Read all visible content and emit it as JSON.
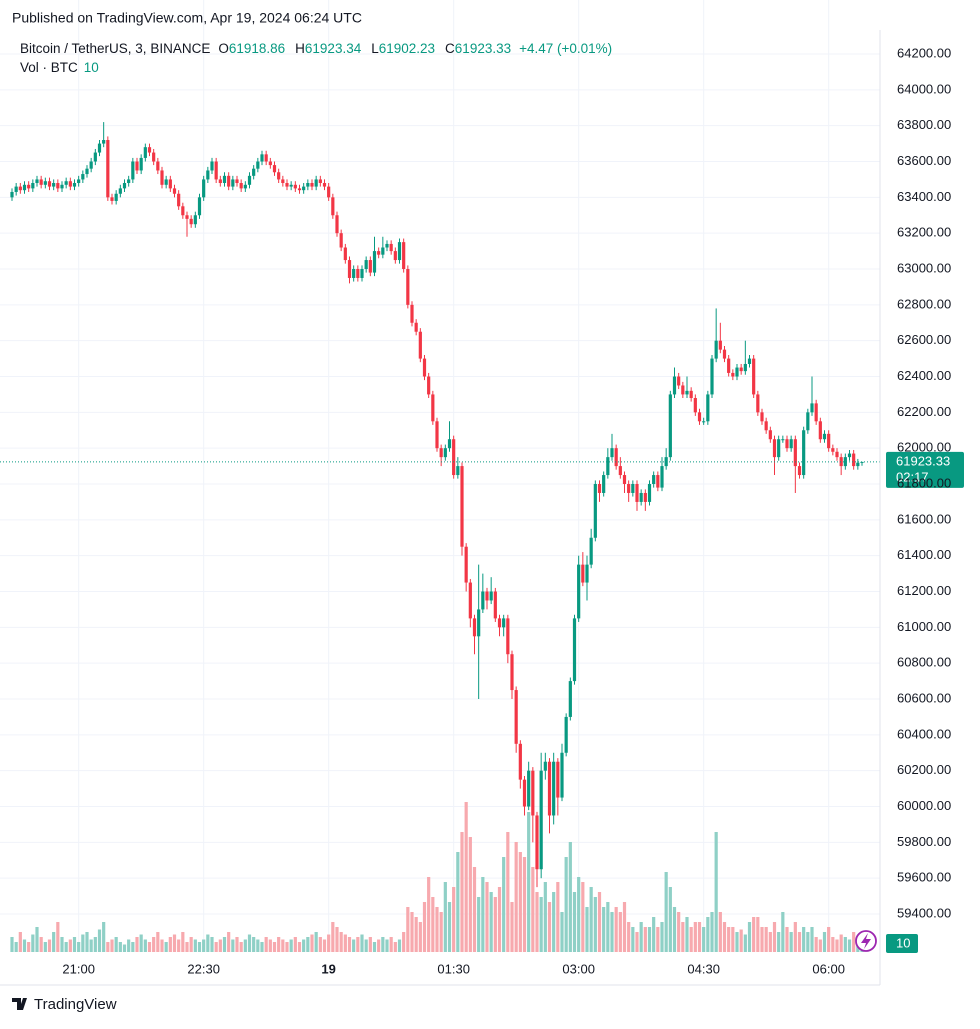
{
  "chart_data": {
    "type": "candlestick",
    "published": "Published on TradingView.com, Apr 19, 2024 06:24 UTC",
    "symbol": "Bitcoin / TetherUS, 3, BINANCE",
    "ohlc_keys": [
      "O",
      "H",
      "L",
      "C"
    ],
    "change": "+4.47 (+0.01%)",
    "volume_title": "Vol · BTC",
    "countdown": "02:17",
    "brand": "TradingView",
    "up_color": "#089981",
    "down_color": "#f23645",
    "volume_up_color": "#8fd0c6",
    "volume_down_color": "#f7a9ae",
    "grid": true,
    "ylim": [
      59188,
      64334
    ],
    "volume_ylim": [
      0,
      600
    ],
    "yticks": [
      {
        "value": 59400,
        "label": "59400.00"
      },
      {
        "value": 59600,
        "label": "59600.00"
      },
      {
        "value": 59800,
        "label": "59800.00"
      },
      {
        "value": 60000,
        "label": "60000.00"
      },
      {
        "value": 60200,
        "label": "60200.00"
      },
      {
        "value": 60400,
        "label": "60400.00"
      },
      {
        "value": 60600,
        "label": "60600.00"
      },
      {
        "value": 60800,
        "label": "60800.00"
      },
      {
        "value": 61000,
        "label": "61000.00"
      },
      {
        "value": 61200,
        "label": "61200.00"
      },
      {
        "value": 61400,
        "label": "61400.00"
      },
      {
        "value": 61600,
        "label": "61600.00"
      },
      {
        "value": 61800,
        "label": "61800.00"
      },
      {
        "value": 62000,
        "label": "62000.00"
      },
      {
        "value": 62200,
        "label": "62200.00"
      },
      {
        "value": 62400,
        "label": "62400.00"
      },
      {
        "value": 62600,
        "label": "62600.00"
      },
      {
        "value": 62800,
        "label": "62800.00"
      },
      {
        "value": 63000,
        "label": "63000.00"
      },
      {
        "value": 63200,
        "label": "63200.00"
      },
      {
        "value": 63400,
        "label": "63400.00"
      },
      {
        "value": 63600,
        "label": "63600.00"
      },
      {
        "value": 63800,
        "label": "63800.00"
      },
      {
        "value": 64000,
        "label": "64000.00"
      },
      {
        "value": 64200,
        "label": "64200.00"
      }
    ],
    "xlim": [
      0,
      208
    ],
    "xticks": [
      {
        "value": 16,
        "label": "21:00"
      },
      {
        "value": 46,
        "label": "22:30"
      },
      {
        "value": 76,
        "label": "19"
      },
      {
        "value": 106,
        "label": "01:30"
      },
      {
        "value": 136,
        "label": "03:00"
      },
      {
        "value": 166,
        "label": "04:30"
      },
      {
        "value": 196,
        "label": "06:00"
      }
    ],
    "open": [
      63400,
      63430,
      63460,
      63440,
      63470,
      63450,
      63480,
      63500,
      63470,
      63490,
      63460,
      63480,
      63450,
      63470,
      63490,
      63460,
      63480,
      63500,
      63530,
      63560,
      63600,
      63650,
      63700,
      63720,
      63400,
      63380,
      63420,
      63450,
      63480,
      63500,
      63600,
      63550,
      63620,
      63680,
      63650,
      63600,
      63550,
      63470,
      63500,
      63450,
      63420,
      63350,
      63300,
      63280,
      63250,
      63300,
      63400,
      63500,
      63550,
      63600,
      63500,
      63480,
      63520,
      63460,
      63500,
      63480,
      63450,
      63470,
      63520,
      63560,
      63600,
      63640,
      63600,
      63580,
      63540,
      63500,
      63480,
      63460,
      63470,
      63450,
      63440,
      63460,
      63480,
      63460,
      63500,
      63480,
      63460,
      63400,
      63300,
      63200,
      63120,
      63050,
      62950,
      63000,
      62950,
      63000,
      63050,
      62980,
      63100,
      63080,
      63120,
      63140,
      63100,
      63050,
      63150,
      63000,
      62800,
      62700,
      62650,
      62500,
      62400,
      62300,
      62150,
      62000,
      61950,
      62000,
      62050,
      61850,
      61900,
      61450,
      61250,
      61050,
      60950,
      61100,
      61200,
      61150,
      61200,
      61050,
      61000,
      61050,
      60850,
      60650,
      60350,
      60150,
      60000,
      60200,
      59950,
      59650,
      60200,
      60250,
      59950,
      60250,
      60050,
      60300,
      60500,
      60700,
      61050,
      61350,
      61250,
      61350,
      61500,
      61800,
      61750,
      61850,
      61950,
      62000,
      61900,
      61850,
      61800,
      61750,
      61800,
      61700,
      61750,
      61700,
      61800,
      61850,
      61780,
      61900,
      61950,
      62300,
      62400,
      62350,
      62300,
      62320,
      62280,
      62200,
      62150,
      62150,
      62300,
      62500,
      62600,
      62550,
      62500,
      62420,
      62400,
      62450,
      62430,
      62470,
      62500,
      62300,
      62200,
      62150,
      62100,
      62050,
      61950,
      62050,
      62050,
      62000,
      62050,
      61900,
      61850,
      62100,
      62200,
      62250,
      62150,
      62050,
      62080,
      62000,
      61980,
      61950,
      61900,
      61950,
      61970,
      61900,
      61918.86
    ],
    "high": [
      63450,
      63480,
      63480,
      63490,
      63490,
      63500,
      63520,
      63520,
      63510,
      63510,
      63500,
      63500,
      63490,
      63510,
      63510,
      63500,
      63520,
      63550,
      63580,
      63620,
      63670,
      63720,
      63820,
      63740,
      63420,
      63440,
      63470,
      63500,
      63520,
      63620,
      63620,
      63640,
      63700,
      63700,
      63670,
      63620,
      63570,
      63520,
      63520,
      63470,
      63440,
      63370,
      63320,
      63300,
      63320,
      63420,
      63520,
      63570,
      63620,
      63620,
      63520,
      63540,
      63540,
      63520,
      63520,
      63500,
      63490,
      63540,
      63580,
      63620,
      63660,
      63660,
      63620,
      63600,
      63560,
      63520,
      63500,
      63490,
      63490,
      63470,
      63480,
      63500,
      63500,
      63520,
      63520,
      63500,
      63480,
      63420,
      63320,
      63220,
      63140,
      63070,
      63020,
      63020,
      63020,
      63070,
      63070,
      63180,
      63120,
      63180,
      63160,
      63160,
      63120,
      63170,
      63170,
      63020,
      62820,
      62720,
      62670,
      62520,
      62420,
      62320,
      62170,
      62020,
      62020,
      62150,
      62070,
      61950,
      61920,
      61470,
      61270,
      61070,
      61350,
      61300,
      61220,
      61280,
      61220,
      61070,
      61070,
      61070,
      60870,
      60670,
      60370,
      60170,
      60250,
      60220,
      59970,
      60300,
      60300,
      60270,
      60300,
      60270,
      60350,
      60520,
      60720,
      61070,
      61400,
      61420,
      61400,
      61550,
      61820,
      61820,
      61870,
      62000,
      62080,
      62020,
      61950,
      61870,
      61820,
      61820,
      61820,
      61770,
      61770,
      61820,
      61870,
      61870,
      61950,
      62000,
      62320,
      62450,
      62420,
      62370,
      62400,
      62340,
      62300,
      62220,
      62170,
      62320,
      62520,
      62780,
      62700,
      62570,
      62520,
      62440,
      62470,
      62470,
      62600,
      62520,
      62520,
      62320,
      62220,
      62170,
      62120,
      62070,
      62070,
      62070,
      62070,
      62070,
      62070,
      61920,
      62120,
      62220,
      62400,
      62270,
      62170,
      62100,
      62100,
      62020,
      62000,
      61970,
      61970,
      61990,
      61990,
      61940,
      61923.34
    ],
    "low": [
      63380,
      63410,
      63420,
      63420,
      63430,
      63430,
      63460,
      63450,
      63450,
      63440,
      63440,
      63430,
      63430,
      63450,
      63440,
      63440,
      63460,
      63480,
      63510,
      63540,
      63580,
      63630,
      63680,
      63380,
      63360,
      63360,
      63400,
      63430,
      63460,
      63480,
      63530,
      63530,
      63600,
      63630,
      63580,
      63530,
      63450,
      63450,
      63430,
      63400,
      63330,
      63280,
      63180,
      63230,
      63230,
      63280,
      63380,
      63480,
      63530,
      63480,
      63460,
      63460,
      63440,
      63440,
      63460,
      63430,
      63430,
      63450,
      63500,
      63540,
      63580,
      63580,
      63560,
      63520,
      63480,
      63460,
      63440,
      63440,
      63430,
      63420,
      63420,
      63440,
      63440,
      63440,
      63460,
      63440,
      63380,
      63280,
      63180,
      63100,
      63030,
      62920,
      62930,
      62930,
      62930,
      62980,
      62960,
      62960,
      63060,
      63060,
      63100,
      63080,
      63030,
      63030,
      62980,
      62780,
      62680,
      62630,
      62480,
      62380,
      62280,
      62130,
      61980,
      61900,
      61930,
      61980,
      61830,
      61830,
      61400,
      61200,
      61000,
      60850,
      60600,
      61080,
      61100,
      61130,
      61030,
      60950,
      60950,
      60800,
      60600,
      60300,
      60100,
      59950,
      59980,
      59800,
      59550,
      59600,
      60150,
      59850,
      59900,
      59950,
      60030,
      60280,
      60480,
      60680,
      61030,
      61230,
      61150,
      61330,
      61480,
      61700,
      61730,
      61830,
      61930,
      61880,
      61830,
      61750,
      61700,
      61730,
      61650,
      61680,
      61650,
      61680,
      61780,
      61760,
      61760,
      61880,
      61930,
      62280,
      62330,
      62280,
      62280,
      62260,
      62180,
      62130,
      62130,
      62130,
      62280,
      62480,
      62530,
      62480,
      62400,
      62380,
      62380,
      62410,
      62410,
      62450,
      62280,
      62180,
      62130,
      62080,
      62030,
      61850,
      61930,
      62030,
      61980,
      61980,
      61750,
      61830,
      61830,
      62080,
      62180,
      62130,
      62030,
      62030,
      61980,
      61960,
      61930,
      61850,
      61880,
      61930,
      61880,
      61880,
      61902.23
    ],
    "close": [
      63430,
      63460,
      63440,
      63470,
      63450,
      63480,
      63500,
      63470,
      63490,
      63460,
      63480,
      63450,
      63470,
      63490,
      63460,
      63480,
      63500,
      63530,
      63560,
      63600,
      63650,
      63700,
      63720,
      63400,
      63380,
      63420,
      63450,
      63480,
      63500,
      63600,
      63550,
      63620,
      63680,
      63650,
      63600,
      63550,
      63470,
      63500,
      63450,
      63420,
      63350,
      63300,
      63280,
      63250,
      63300,
      63400,
      63500,
      63550,
      63600,
      63500,
      63480,
      63520,
      63460,
      63500,
      63480,
      63450,
      63470,
      63520,
      63560,
      63600,
      63640,
      63600,
      63580,
      63540,
      63500,
      63480,
      63460,
      63470,
      63450,
      63440,
      63460,
      63480,
      63460,
      63500,
      63480,
      63460,
      63400,
      63300,
      63200,
      63120,
      63050,
      62950,
      63000,
      62950,
      63000,
      63050,
      62980,
      63100,
      63080,
      63120,
      63140,
      63100,
      63050,
      63150,
      63000,
      62800,
      62700,
      62650,
      62500,
      62400,
      62300,
      62150,
      62000,
      61950,
      62000,
      62050,
      61850,
      61900,
      61450,
      61250,
      61050,
      60950,
      61100,
      61200,
      61150,
      61200,
      61050,
      61000,
      61050,
      60850,
      60650,
      60350,
      60150,
      60000,
      60200,
      59950,
      59650,
      60200,
      60250,
      59950,
      60250,
      60050,
      60300,
      60500,
      60700,
      61050,
      61350,
      61250,
      61350,
      61500,
      61800,
      61750,
      61850,
      61950,
      62000,
      61900,
      61850,
      61800,
      61750,
      61800,
      61700,
      61750,
      61700,
      61800,
      61850,
      61780,
      61900,
      61950,
      62300,
      62400,
      62350,
      62300,
      62320,
      62280,
      62200,
      62150,
      62150,
      62300,
      62500,
      62600,
      62550,
      62500,
      62420,
      62400,
      62450,
      62430,
      62470,
      62500,
      62300,
      62200,
      62150,
      62100,
      62050,
      61950,
      62050,
      62050,
      62000,
      62050,
      61900,
      61850,
      62100,
      62200,
      62250,
      62150,
      62050,
      62080,
      62000,
      61980,
      61950,
      61900,
      61950,
      61970,
      61900,
      61918.86,
      61923.33
    ],
    "volume": [
      30,
      20,
      40,
      25,
      20,
      35,
      50,
      30,
      20,
      25,
      40,
      60,
      30,
      20,
      25,
      30,
      20,
      35,
      40,
      25,
      30,
      45,
      60,
      20,
      25,
      30,
      20,
      15,
      25,
      20,
      30,
      35,
      25,
      20,
      30,
      40,
      25,
      20,
      30,
      35,
      25,
      40,
      20,
      30,
      25,
      20,
      25,
      35,
      30,
      20,
      25,
      30,
      40,
      25,
      30,
      20,
      25,
      35,
      30,
      25,
      20,
      30,
      25,
      20,
      30,
      25,
      20,
      25,
      30,
      20,
      25,
      30,
      35,
      40,
      30,
      25,
      35,
      60,
      50,
      40,
      35,
      30,
      25,
      30,
      35,
      25,
      30,
      20,
      25,
      30,
      25,
      30,
      20,
      25,
      40,
      90,
      80,
      70,
      60,
      100,
      150,
      110,
      90,
      80,
      140,
      100,
      130,
      200,
      240,
      300,
      230,
      170,
      110,
      150,
      140,
      120,
      110,
      130,
      190,
      240,
      100,
      220,
      200,
      190,
      280,
      170,
      120,
      110,
      140,
      100,
      120,
      140,
      80,
      190,
      220,
      120,
      150,
      140,
      90,
      130,
      110,
      120,
      90,
      100,
      80,
      90,
      80,
      100,
      60,
      50,
      40,
      60,
      50,
      50,
      70,
      50,
      60,
      160,
      130,
      90,
      80,
      60,
      70,
      50,
      60,
      60,
      50,
      70,
      80,
      240,
      80,
      60,
      50,
      50,
      40,
      45,
      35,
      60,
      70,
      70,
      50,
      50,
      40,
      60,
      40,
      80,
      50,
      40,
      60,
      40,
      50,
      40,
      50,
      30,
      25,
      40,
      50,
      30,
      25,
      35,
      30,
      25,
      40,
      30,
      10
    ]
  }
}
